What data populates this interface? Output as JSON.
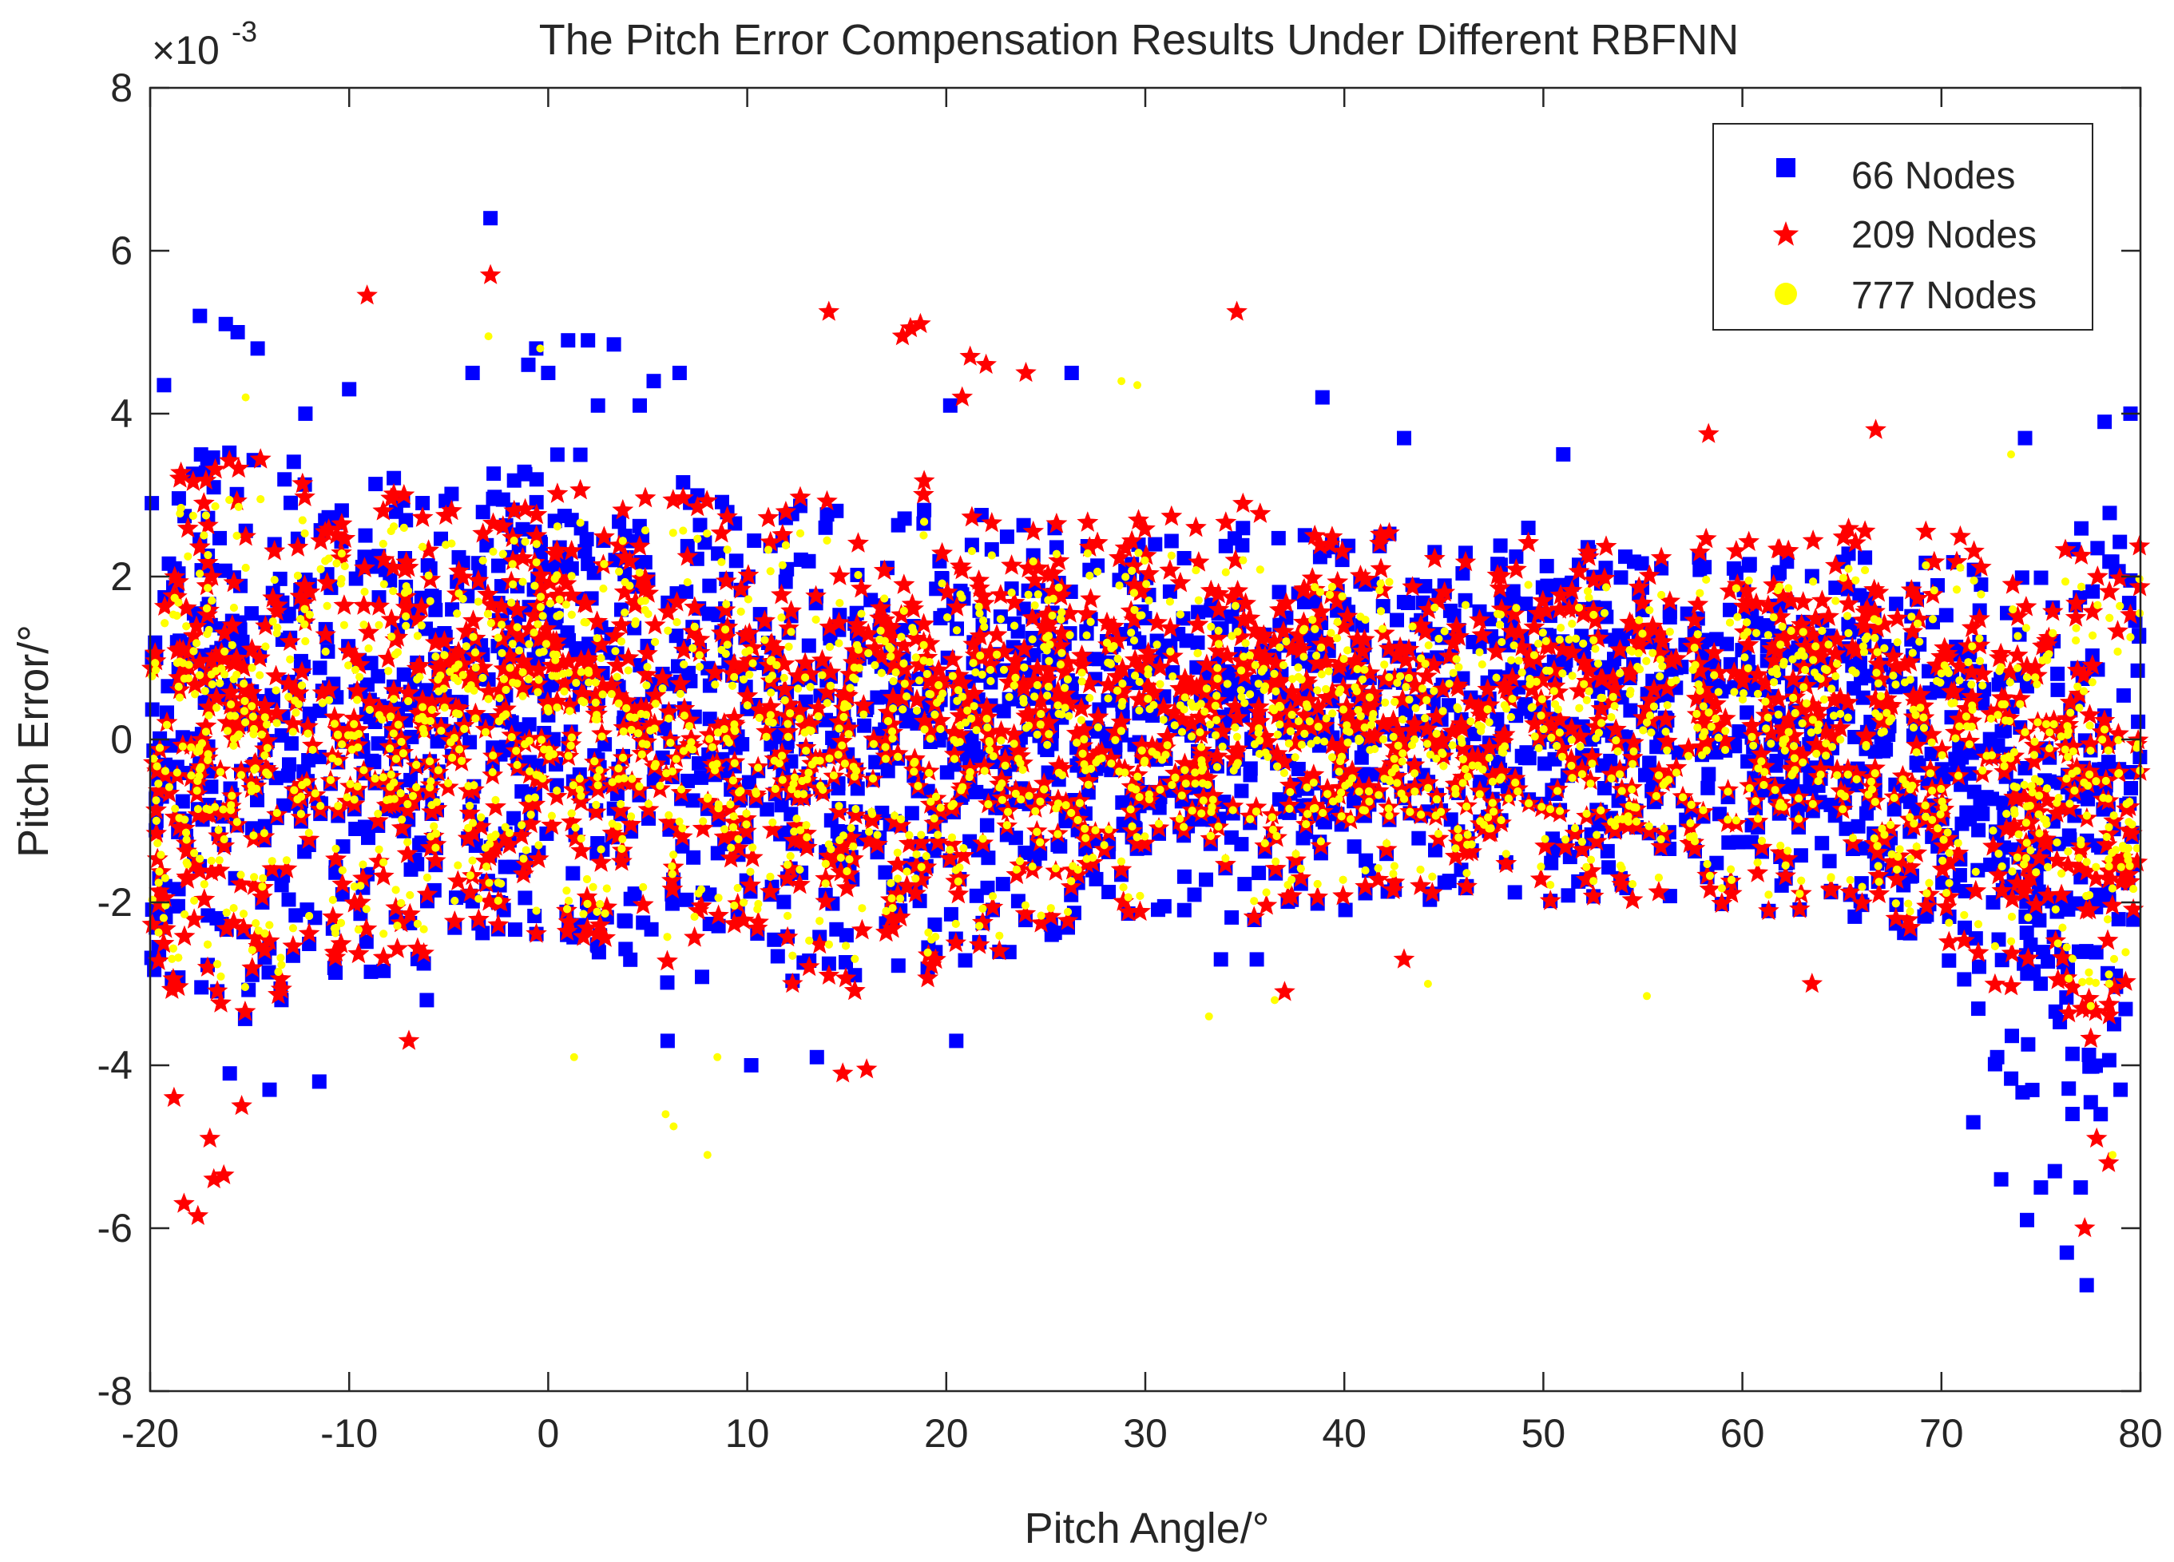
{
  "chart_data": {
    "type": "scatter",
    "title": "The Pitch Error Compensation Results Under Different RBFNN",
    "xlabel": "Pitch Angle/°",
    "ylabel": "Pitch Error/°",
    "exponent_base": "×10",
    "exponent_power": "-3",
    "xlim": [
      -20,
      80
    ],
    "ylim": [
      -8,
      8
    ],
    "xticks": [
      -20,
      -10,
      0,
      10,
      20,
      30,
      40,
      50,
      60,
      70,
      80
    ],
    "yticks": [
      -8,
      -6,
      -4,
      -2,
      0,
      2,
      4,
      6,
      8
    ],
    "grid": false,
    "legend_position": "top-right",
    "series": [
      {
        "name": "66 Nodes",
        "marker": "square",
        "color": "#0000ff",
        "outliers": [
          [
            -2.9,
            6.4
          ],
          [
            -17.5,
            5.2
          ],
          [
            -16.2,
            5.1
          ],
          [
            -15.6,
            5.0
          ],
          [
            1.0,
            4.9
          ],
          [
            -0.6,
            4.8
          ],
          [
            2.0,
            4.9
          ],
          [
            3.3,
            4.85
          ],
          [
            -14.6,
            4.8
          ],
          [
            -19.3,
            4.35
          ],
          [
            0.0,
            4.5
          ],
          [
            26.3,
            4.5
          ],
          [
            38.9,
            4.2
          ],
          [
            79.5,
            4.0
          ],
          [
            78.2,
            3.9
          ],
          [
            74.2,
            3.7
          ],
          [
            -12.2,
            4.0
          ],
          [
            -10.0,
            4.3
          ],
          [
            -1.0,
            4.6
          ],
          [
            -3.8,
            4.5
          ],
          [
            2.5,
            4.1
          ],
          [
            4.6,
            4.1
          ],
          [
            5.3,
            4.4
          ],
          [
            6.6,
            4.5
          ],
          [
            20.2,
            4.1
          ],
          [
            43.0,
            3.7
          ],
          [
            51.0,
            3.5
          ],
          [
            -14.0,
            -4.3
          ],
          [
            -16.0,
            -4.1
          ],
          [
            -11.5,
            -4.2
          ],
          [
            -6.1,
            -3.2
          ],
          [
            6.0,
            -3.7
          ],
          [
            10.2,
            -4.0
          ],
          [
            13.5,
            -3.9
          ],
          [
            20.5,
            -3.7
          ],
          [
            33.8,
            -2.7
          ],
          [
            35.6,
            -2.7
          ],
          [
            71.6,
            -4.7
          ],
          [
            73.0,
            -5.4
          ],
          [
            74.3,
            -5.9
          ],
          [
            75.0,
            -5.5
          ],
          [
            75.7,
            -5.3
          ],
          [
            76.3,
            -6.3
          ],
          [
            77.0,
            -5.5
          ],
          [
            77.3,
            -6.7
          ],
          [
            78.0,
            -4.6
          ],
          [
            72.8,
            -3.9
          ],
          [
            79.0,
            -4.3
          ]
        ],
        "trend": {
          "upper": [
            [
              -20,
              3.4
            ],
            [
              -15,
              3.6
            ],
            [
              -10,
              3.2
            ],
            [
              -5,
              3.3
            ],
            [
              0,
              3.6
            ],
            [
              5,
              3.3
            ],
            [
              10,
              2.9
            ],
            [
              15,
              3.0
            ],
            [
              20,
              2.9
            ],
            [
              25,
              2.7
            ],
            [
              30,
              2.4
            ],
            [
              35,
              2.6
            ],
            [
              40,
              2.5
            ],
            [
              45,
              2.6
            ],
            [
              50,
              2.6
            ],
            [
              55,
              2.4
            ],
            [
              60,
              2.3
            ],
            [
              65,
              2.3
            ],
            [
              70,
              2.3
            ],
            [
              75,
              2.6
            ],
            [
              80,
              3.0
            ]
          ],
          "lower": [
            [
              -20,
              -2.8
            ],
            [
              -15,
              -3.6
            ],
            [
              -10,
              -3.0
            ],
            [
              -5,
              -2.7
            ],
            [
              0,
              -2.5
            ],
            [
              5,
              -3.0
            ],
            [
              10,
              -3.0
            ],
            [
              15,
              -3.0
            ],
            [
              20,
              -2.8
            ],
            [
              25,
              -2.5
            ],
            [
              30,
              -2.2
            ],
            [
              35,
              -2.3
            ],
            [
              40,
              -2.2
            ],
            [
              45,
              -2.0
            ],
            [
              50,
              -2.0
            ],
            [
              55,
              -2.0
            ],
            [
              60,
              -2.1
            ],
            [
              65,
              -2.2
            ],
            [
              70,
              -2.5
            ],
            [
              73,
              -4.2
            ],
            [
              75,
              -4.9
            ],
            [
              77,
              -4.8
            ],
            [
              80,
              -3.2
            ]
          ]
        }
      },
      {
        "name": "209 Nodes",
        "marker": "star",
        "color": "#ff0000",
        "outliers": [
          [
            -2.9,
            5.7
          ],
          [
            -9.1,
            5.45
          ],
          [
            14.1,
            5.25
          ],
          [
            18.2,
            5.05
          ],
          [
            18.7,
            5.1
          ],
          [
            17.8,
            4.95
          ],
          [
            34.6,
            5.25
          ],
          [
            21.2,
            4.7
          ],
          [
            22.0,
            4.6
          ],
          [
            24.0,
            4.5
          ],
          [
            20.8,
            4.2
          ],
          [
            -18.3,
            -5.7
          ],
          [
            -17.6,
            -5.85
          ],
          [
            -16.8,
            -5.4
          ],
          [
            -16.3,
            -5.35
          ],
          [
            -17.0,
            -4.9
          ],
          [
            -18.8,
            -4.4
          ],
          [
            -15.4,
            -4.5
          ],
          [
            37.0,
            -3.1
          ],
          [
            43.0,
            -2.7
          ],
          [
            63.5,
            -3.0
          ],
          [
            77.2,
            -6.0
          ],
          [
            78.4,
            -5.2
          ],
          [
            77.8,
            -4.9
          ],
          [
            16.0,
            -4.05
          ],
          [
            14.8,
            -4.1
          ],
          [
            -7.0,
            -3.7
          ],
          [
            66.7,
            3.8
          ],
          [
            58.3,
            3.75
          ]
        ],
        "trend": {
          "upper": [
            [
              -20,
              3.3
            ],
            [
              -15,
              3.5
            ],
            [
              -10,
              3.0
            ],
            [
              -5,
              3.1
            ],
            [
              0,
              3.1
            ],
            [
              5,
              3.0
            ],
            [
              10,
              2.9
            ],
            [
              15,
              3.2
            ],
            [
              20,
              3.3
            ],
            [
              25,
              3.0
            ],
            [
              30,
              2.7
            ],
            [
              35,
              2.9
            ],
            [
              40,
              2.6
            ],
            [
              45,
              2.5
            ],
            [
              50,
              2.4
            ],
            [
              55,
              2.5
            ],
            [
              60,
              2.6
            ],
            [
              65,
              2.6
            ],
            [
              70,
              2.7
            ],
            [
              75,
              2.4
            ],
            [
              80,
              2.4
            ]
          ],
          "lower": [
            [
              -20,
              -3.0
            ],
            [
              -15,
              -3.5
            ],
            [
              -10,
              -2.8
            ],
            [
              -5,
              -2.6
            ],
            [
              0,
              -2.5
            ],
            [
              5,
              -2.7
            ],
            [
              10,
              -2.9
            ],
            [
              15,
              -3.2
            ],
            [
              20,
              -2.9
            ],
            [
              25,
              -2.4
            ],
            [
              30,
              -2.2
            ],
            [
              35,
              -2.3
            ],
            [
              40,
              -2.1
            ],
            [
              45,
              -2.0
            ],
            [
              50,
              -2.0
            ],
            [
              55,
              -2.0
            ],
            [
              60,
              -2.1
            ],
            [
              65,
              -2.2
            ],
            [
              70,
              -2.4
            ],
            [
              75,
              -3.6
            ],
            [
              77,
              -3.9
            ],
            [
              80,
              -3.0
            ]
          ]
        }
      },
      {
        "name": "777 Nodes",
        "marker": "circle",
        "color": "#ffff00",
        "outliers": [
          [
            5.9,
            -4.6
          ],
          [
            6.3,
            -4.75
          ],
          [
            8.0,
            -5.1
          ],
          [
            28.8,
            4.4
          ],
          [
            29.6,
            4.35
          ],
          [
            -0.4,
            4.8
          ],
          [
            -3.0,
            4.95
          ],
          [
            -15.2,
            4.2
          ],
          [
            73.5,
            3.5
          ],
          [
            8.5,
            -3.9
          ],
          [
            1.3,
            -3.9
          ],
          [
            33.2,
            -3.4
          ],
          [
            36.5,
            -3.2
          ],
          [
            44.2,
            -3.0
          ],
          [
            55.2,
            -3.15
          ],
          [
            78.6,
            -5.1
          ]
        ],
        "trend": {
          "upper": [
            [
              -20,
              2.9
            ],
            [
              -15,
              3.0
            ],
            [
              -10,
              2.6
            ],
            [
              -5,
              2.7
            ],
            [
              0,
              2.7
            ],
            [
              5,
              2.6
            ],
            [
              10,
              2.5
            ],
            [
              15,
              2.7
            ],
            [
              20,
              2.8
            ],
            [
              25,
              2.6
            ],
            [
              30,
              2.3
            ],
            [
              35,
              2.2
            ],
            [
              40,
              2.0
            ],
            [
              45,
              1.9
            ],
            [
              50,
              1.9
            ],
            [
              55,
              2.0
            ],
            [
              60,
              2.1
            ],
            [
              65,
              2.1
            ],
            [
              70,
              2.3
            ],
            [
              75,
              2.0
            ],
            [
              80,
              2.0
            ]
          ],
          "lower": [
            [
              -20,
              -2.6
            ],
            [
              -15,
              -3.2
            ],
            [
              -10,
              -2.5
            ],
            [
              -5,
              -2.3
            ],
            [
              0,
              -2.2
            ],
            [
              5,
              -2.4
            ],
            [
              10,
              -2.6
            ],
            [
              15,
              -2.8
            ],
            [
              20,
              -2.6
            ],
            [
              25,
              -2.3
            ],
            [
              30,
              -2.0
            ],
            [
              35,
              -2.1
            ],
            [
              40,
              -1.9
            ],
            [
              45,
              -1.8
            ],
            [
              50,
              -1.8
            ],
            [
              55,
              -1.8
            ],
            [
              60,
              -1.9
            ],
            [
              65,
              -2.0
            ],
            [
              70,
              -2.2
            ],
            [
              75,
              -2.9
            ],
            [
              77,
              -3.5
            ],
            [
              80,
              -2.6
            ]
          ]
        }
      }
    ]
  }
}
